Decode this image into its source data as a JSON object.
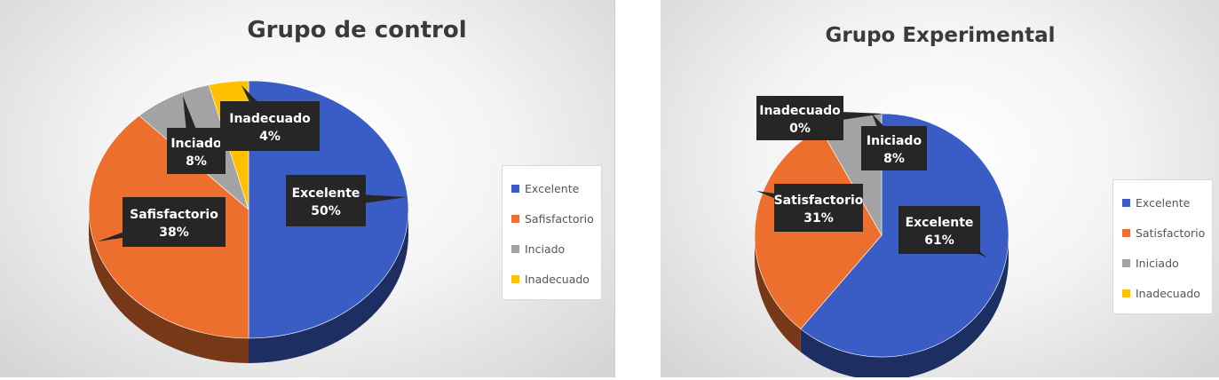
{
  "chart_data": [
    {
      "type": "pie",
      "title": "Grupo de control",
      "categories": [
        "Excelente",
        "Safisfactorio",
        "Inciado",
        "Inadecuado"
      ],
      "values": [
        50,
        38,
        8,
        4
      ],
      "labels": [
        {
          "name": "Excelente",
          "value": "50%"
        },
        {
          "name": "Safisfactorio",
          "value": "38%"
        },
        {
          "name": "Inciado",
          "value": "8%"
        },
        {
          "name": "Inadecuado",
          "value": "4%"
        }
      ],
      "legend": [
        "Excelente",
        "Safisfactorio",
        "Inciado",
        "Inadecuado"
      ],
      "legend_position": "right",
      "colors": [
        "#3a5cc5",
        "#ed6f2d",
        "#a3a3a3",
        "#ffc000"
      ]
    },
    {
      "type": "pie",
      "title": "Grupo Experimental",
      "categories": [
        "Excelente",
        "Satisfactorio",
        "Iniciado",
        "Inadecuado"
      ],
      "values": [
        61,
        31,
        8,
        0
      ],
      "labels": [
        {
          "name": "Excelente",
          "value": "61%"
        },
        {
          "name": "Satisfactorio",
          "value": "31%"
        },
        {
          "name": "Iniciado",
          "value": "8%"
        },
        {
          "name": "Inadecuado",
          "value": "0%"
        }
      ],
      "legend": [
        "Excelente",
        "Satisfactorio",
        "Iniciado",
        "Inadecuado"
      ],
      "legend_position": "right",
      "colors": [
        "#3a5cc5",
        "#ed6f2d",
        "#a3a3a3",
        "#ffc000"
      ]
    }
  ]
}
